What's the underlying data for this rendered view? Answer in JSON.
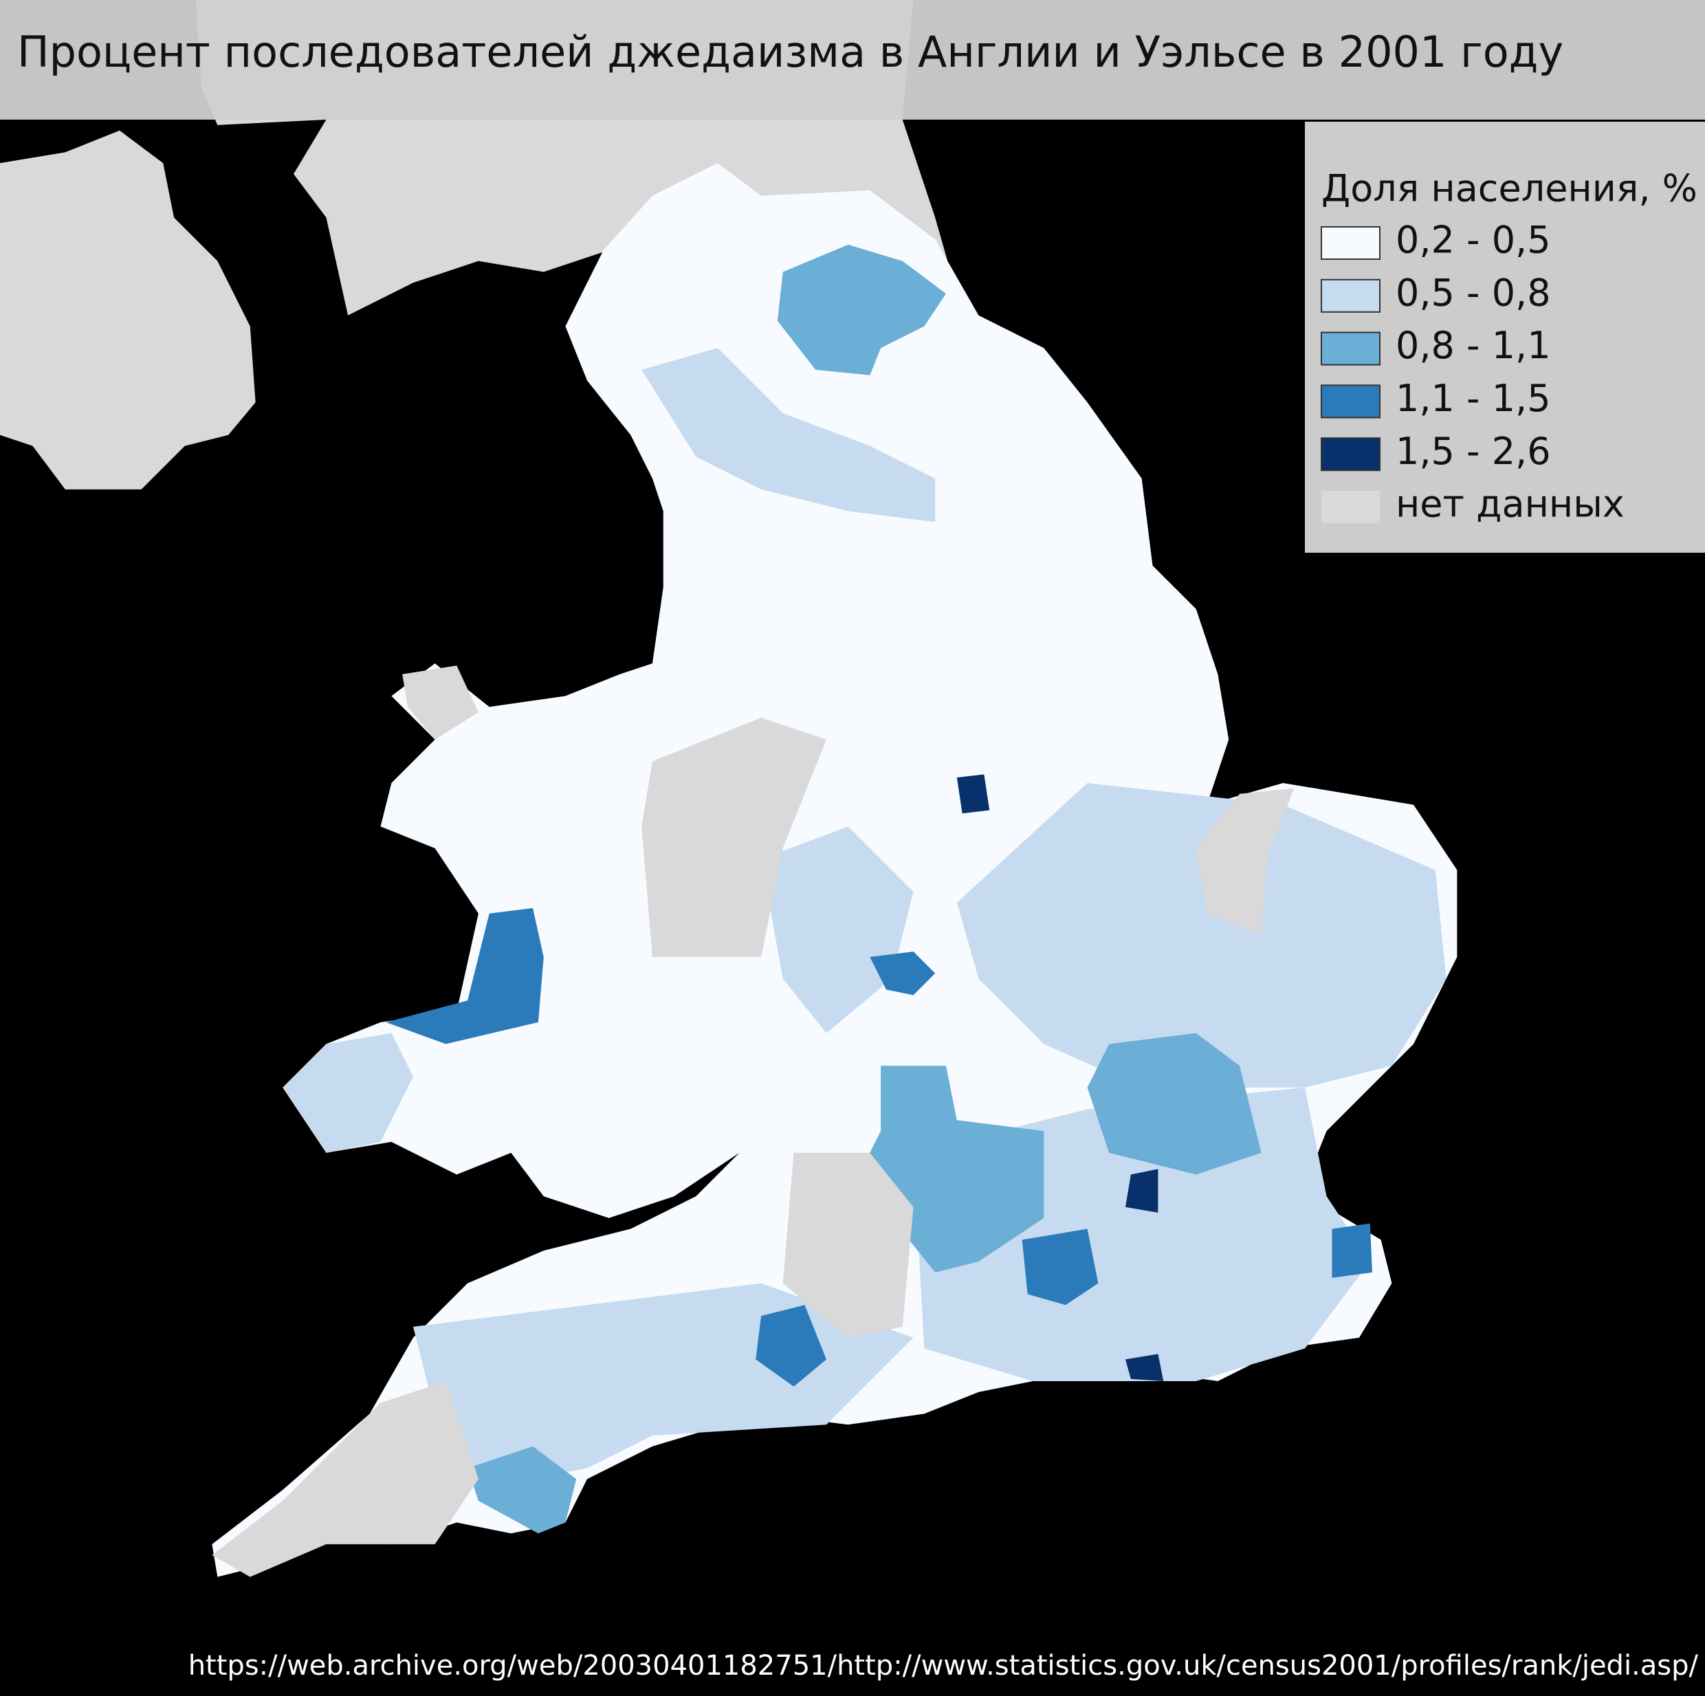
{
  "title": "Процент последователей джедаизма в Англии и Уэльсе в 2001 году",
  "legend": {
    "title": "Доля населения, %",
    "items": [
      {
        "label": "0,2 - 0,5",
        "color": "#f7fbff"
      },
      {
        "label": "0,5 - 0,8",
        "color": "#c6dbef"
      },
      {
        "label": "0,8 - 1,1",
        "color": "#6baed6"
      },
      {
        "label": "1,1 - 1,5",
        "color": "#2b7bba"
      },
      {
        "label": "1,5 - 2,6",
        "color": "#08306b"
      },
      {
        "label": "нет данных",
        "color": "#d9d9d9"
      }
    ]
  },
  "source": "https://web.archive.org/web/20030401182751/http://www.statistics.gov.uk/census2001/profiles/rank/jedi.asp/"
}
